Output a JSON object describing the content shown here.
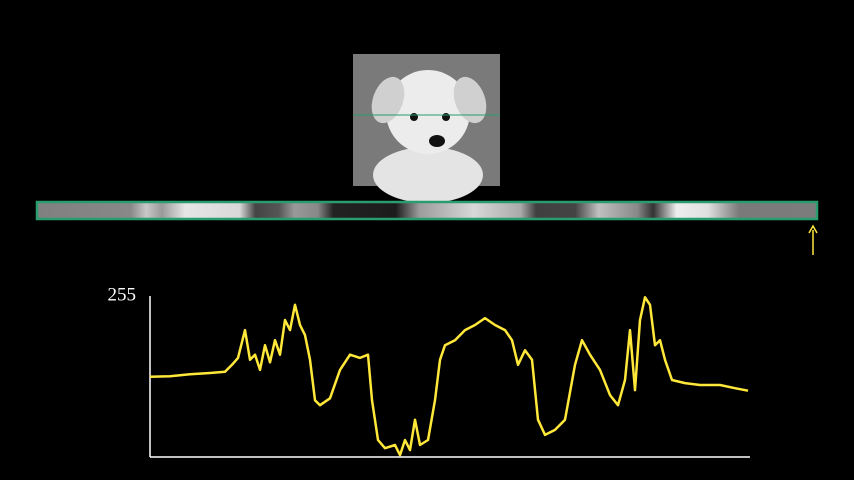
{
  "chart_data": {
    "type": "line",
    "x": [
      0,
      20,
      40,
      60,
      75,
      82,
      88,
      95,
      100,
      105,
      110,
      115,
      120,
      125,
      130,
      135,
      140,
      145,
      150,
      155,
      160,
      165,
      170,
      180,
      190,
      200,
      210,
      218,
      222,
      228,
      235,
      245,
      250,
      255,
      260,
      265,
      270,
      278,
      285,
      290,
      295,
      305,
      315,
      325,
      335,
      345,
      355,
      362,
      368,
      375,
      382,
      388,
      395,
      405,
      415,
      425,
      432,
      440,
      450,
      460,
      468,
      475,
      480,
      485,
      490,
      495,
      500,
      505,
      510,
      515,
      522,
      535,
      550,
      570,
      585,
      598
    ],
    "series": [
      {
        "color": "#ffe83a",
        "values": [
          127,
          128,
          131,
          133,
          135,
          146,
          157,
          201,
          154,
          162,
          138,
          177,
          150,
          185,
          162,
          217,
          201,
          241,
          209,
          193,
          154,
          90,
          82,
          93,
          138,
          162,
          157,
          162,
          90,
          27,
          14,
          19,
          3,
          27,
          11,
          59,
          19,
          27,
          90,
          154,
          177,
          185,
          201,
          209,
          220,
          209,
          201,
          185,
          146,
          169,
          154,
          59,
          35,
          43,
          59,
          146,
          185,
          162,
          138,
          98,
          82,
          122,
          201,
          106,
          217,
          253,
          241,
          177,
          185,
          154,
          122,
          117,
          114,
          114,
          109,
          105
        ]
      }
    ],
    "xlim": [
      0,
      600
    ],
    "ylim": [
      0,
      255
    ],
    "yticks": [
      255
    ]
  }
}
